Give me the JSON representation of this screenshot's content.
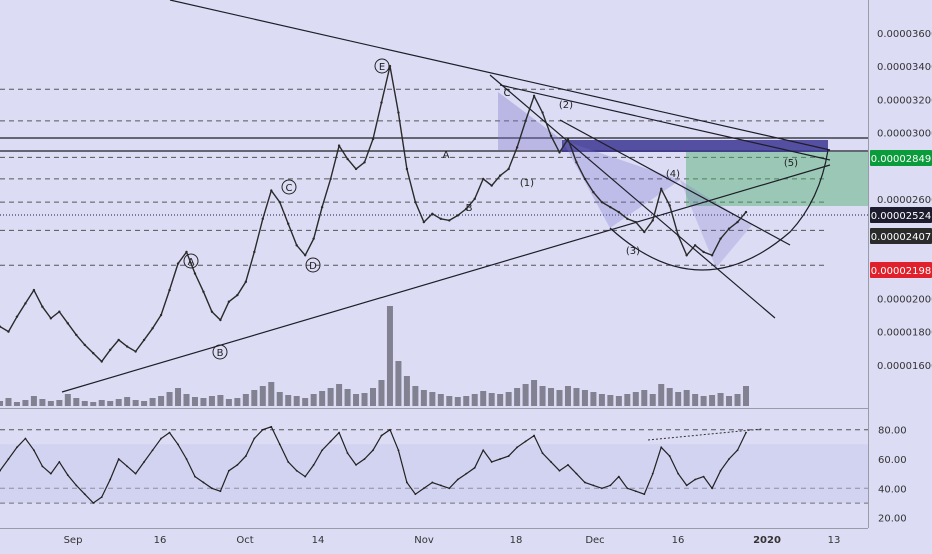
{
  "colors": {
    "background": "#dcdcf5",
    "price_line": "#2a2a2a",
    "trendline": "#1e1e28",
    "dashed_level": "#555555",
    "projection_purple": "#7b74c9",
    "target_green": "#4caf6a",
    "current_price_badge": "#111111",
    "support_badge_red": "#e0202a",
    "green_badge": "#0a9c3a",
    "navy_badge": "#1c1c2e",
    "rsi_line": "#222222"
  },
  "chart_data": [
    {
      "type": "line",
      "ylim": [
        1.4e-06,
        3.75e-06
      ],
      "x_tick_labels": [
        "Sep",
        "16",
        "Oct",
        "14",
        "Nov",
        "18",
        "Dec",
        "16",
        "2020",
        "13"
      ],
      "y_tick_labels": [
        "0.00003600",
        "0.00003400",
        "0.00003200",
        "0.00003000",
        "0.00002600",
        "0.00002000",
        "0.00001800",
        "0.00001600"
      ],
      "price_badges": [
        {
          "label": "0.00002849",
          "color": "#0a9c3a"
        },
        {
          "label": "0.00002524",
          "color": "#1c1c2e"
        },
        {
          "label": "0.00002407",
          "color": "#2b2b2b"
        },
        {
          "label": "0.00002198",
          "color": "#e0202a"
        }
      ],
      "dashed_levels": [
        3.2601e-06,
        3.07e-06,
        2.85e-06,
        2.72e-06,
        2.58e-06,
        2.41e-06,
        2.2e-06
      ],
      "wave_labels_circled": [
        "A",
        "B",
        "C",
        "D",
        "E"
      ],
      "wave_labels_plain": [
        "A",
        "B",
        "C",
        "(1)",
        "(2)",
        "(3)",
        "(4)",
        "(5)"
      ],
      "series": [
        {
          "values": [
            1.83e-06,
            1.8e-06,
            1.89e-06,
            1.97e-06,
            2.05e-06,
            1.95e-06,
            1.88e-06,
            1.92e-06,
            1.85e-06,
            1.78e-06,
            1.72e-06,
            1.67e-06,
            1.62e-06,
            1.69e-06,
            1.75e-06,
            1.71e-06,
            1.68e-06,
            1.75e-06,
            1.82e-06,
            1.9e-06,
            2.05e-06,
            2.21e-06,
            2.28e-06,
            2.15e-06,
            2.04e-06,
            1.92e-06,
            1.87e-06,
            1.98e-06,
            2.02e-06,
            2.1e-06,
            2.28e-06,
            2.48e-06,
            2.65e-06,
            2.58e-06,
            2.45e-06,
            2.32e-06,
            2.26e-06,
            2.36e-06,
            2.55e-06,
            2.72e-06,
            2.92e-06,
            2.84e-06,
            2.78e-06,
            2.82e-06,
            2.96e-06,
            3.18e-06,
            3.4e-06,
            3.12e-06,
            2.78e-06,
            2.58e-06,
            2.46e-06,
            2.51e-06,
            2.48e-06,
            2.47e-06,
            2.5e-06,
            2.54e-06,
            2.6e-06,
            2.72e-06,
            2.68e-06,
            2.74e-06,
            2.78e-06,
            2.91e-06,
            3.07e-06,
            3.22e-06,
            3.12e-06,
            2.98e-06,
            2.88e-06,
            2.96e-06,
            2.82e-06,
            2.72e-06,
            2.64e-06,
            2.58e-06,
            2.55e-06,
            2.52e-06,
            2.48e-06,
            2.46e-06,
            2.4e-06,
            2.47e-06,
            2.66e-06,
            2.56e-06,
            2.38e-06,
            2.26e-06,
            2.32e-06,
            2.28e-06,
            2.26e-06,
            2.36e-06,
            2.42e-06,
            2.46e-06,
            2.52e-06
          ]
        },
        {
          "type": "bar",
          "values": [
            0.05,
            0.08,
            0.04,
            0.06,
            0.1,
            0.07,
            0.05,
            0.06,
            0.12,
            0.08,
            0.05,
            0.04,
            0.06,
            0.05,
            0.07,
            0.09,
            0.06,
            0.05,
            0.08,
            0.1,
            0.14,
            0.18,
            0.12,
            0.09,
            0.08,
            0.1,
            0.11,
            0.07,
            0.08,
            0.12,
            0.16,
            0.2,
            0.24,
            0.14,
            0.11,
            0.1,
            0.08,
            0.12,
            0.15,
            0.18,
            0.22,
            0.17,
            0.12,
            0.13,
            0.18,
            0.26,
            1,
            0.45,
            0.3,
            0.2,
            0.16,
            0.14,
            0.12,
            0.1,
            0.09,
            0.1,
            0.12,
            0.15,
            0.13,
            0.12,
            0.14,
            0.18,
            0.22,
            0.26,
            0.2,
            0.18,
            0.16,
            0.2,
            0.18,
            0.16,
            0.14,
            0.12,
            0.11,
            0.1,
            0.12,
            0.14,
            0.16,
            0.12,
            0.22,
            0.18,
            0.14,
            0.16,
            0.12,
            0.1,
            0.11,
            0.13,
            0.1,
            0.12,
            0.2
          ]
        },
        {
          "type": "line",
          "ylim": [
            17,
            88
          ],
          "y_tick_labels": [
            "80.00",
            "60.00",
            "40.00",
            "20.00"
          ],
          "values": [
            52,
            60,
            68,
            74,
            66,
            55,
            50,
            58,
            49,
            42,
            36,
            30,
            34,
            46,
            60,
            55,
            50,
            58,
            66,
            74,
            78,
            70,
            60,
            48,
            44,
            40,
            38,
            52,
            56,
            62,
            74,
            80,
            82,
            70,
            58,
            52,
            48,
            56,
            66,
            72,
            78,
            64,
            56,
            60,
            66,
            76,
            80,
            66,
            44,
            36,
            40,
            44,
            42,
            40,
            46,
            50,
            54,
            66,
            58,
            60,
            62,
            68,
            72,
            76,
            64,
            58,
            52,
            56,
            50,
            44,
            42,
            40,
            42,
            48,
            40,
            38,
            36,
            50,
            68,
            62,
            50,
            42,
            46,
            48,
            40,
            52,
            60,
            66,
            78
          ]
        }
      ]
    }
  ]
}
